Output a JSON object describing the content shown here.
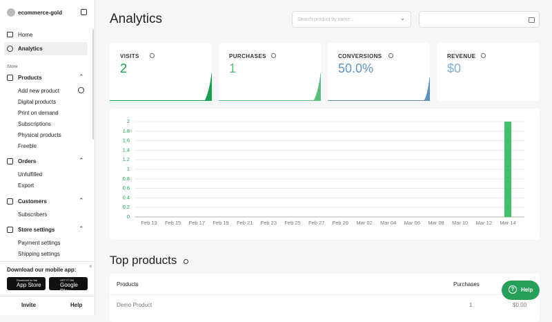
{
  "sidebar": {
    "account": "ecommerce-gold",
    "nav": [
      "Home",
      "Analytics"
    ],
    "section": "Store",
    "groups": [
      {
        "label": "Products",
        "items": [
          "Add new product",
          "Digital products",
          "Print on demand",
          "Subscriptions",
          "Physical products",
          "Freeble"
        ]
      },
      {
        "label": "Orders",
        "items": [
          "Unfulfilled",
          "Export"
        ]
      },
      {
        "label": "Customers",
        "items": [
          "Subscribers"
        ]
      },
      {
        "label": "Store settings",
        "items": [
          "Payment settings",
          "Shipping settings"
        ]
      }
    ],
    "app_promo": {
      "title": "Download our mobile app:",
      "app_store": {
        "small": "Download on the",
        "big": "App Store"
      },
      "google_play": {
        "small": "GET IT ON",
        "big": "Google Play"
      }
    },
    "footer": [
      "Invite",
      "Help"
    ]
  },
  "header": {
    "title": "Analytics",
    "search_placeholder": "Search product by name..."
  },
  "stats": [
    {
      "label": "VISITS",
      "value": "2"
    },
    {
      "label": "PURCHASES",
      "value": "1"
    },
    {
      "label": "CONVERSIONS",
      "value": "50.0%"
    },
    {
      "label": "REVENUE",
      "value": "$0"
    }
  ],
  "chart_data": {
    "type": "bar",
    "color": "#3fc06a",
    "categories": [
      "Feb 13",
      null,
      "Feb 15",
      null,
      "Feb 17",
      null,
      "Feb 19",
      null,
      "Feb 21",
      null,
      "Feb 23",
      null,
      "Feb 25",
      null,
      "Feb 27",
      null,
      "Feb 29",
      null,
      "Mar 02",
      null,
      "Mar 04",
      null,
      "Mar 06",
      null,
      "Mar 08",
      null,
      "Mar 10",
      null,
      "Mar 12",
      null,
      "Mar 14"
    ],
    "values": [
      0,
      0,
      0,
      0,
      0,
      0,
      0,
      0,
      0,
      0,
      0,
      0,
      0,
      0,
      0,
      0,
      0,
      0,
      0,
      0,
      0,
      0,
      0,
      0,
      0,
      0,
      0,
      0,
      0,
      0,
      2
    ],
    "ylim": [
      0,
      2
    ],
    "yticks": [
      0,
      0.2,
      0.4,
      0.6,
      0.8,
      1,
      1.2,
      1.4,
      1.6,
      1.8,
      2
    ],
    "grid": true
  },
  "top_products": {
    "title": "Top products",
    "columns": [
      "Products",
      "Purchases"
    ],
    "rows": [
      [
        "Demo Product",
        "1",
        "$0.00"
      ]
    ]
  },
  "help_button": "Help"
}
